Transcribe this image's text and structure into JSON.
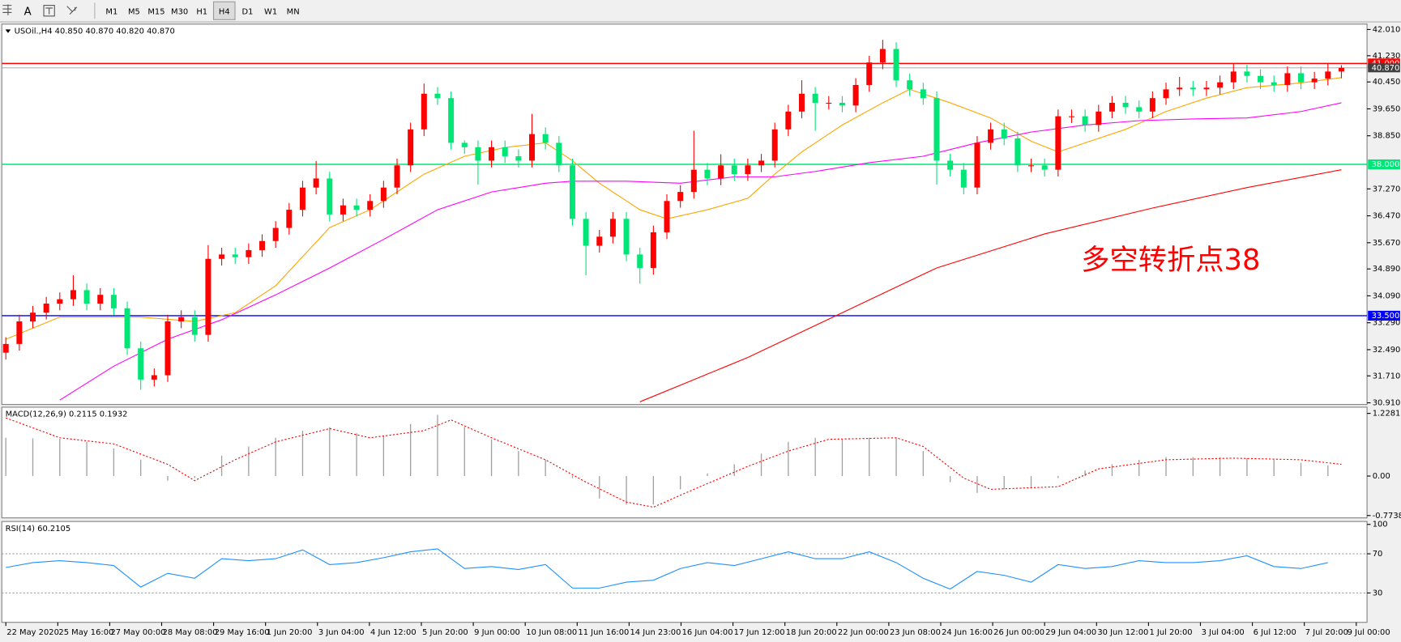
{
  "toolbar": {
    "tools": [
      "A"
    ],
    "timeframes": [
      "M1",
      "M5",
      "M15",
      "M30",
      "H1",
      "H4",
      "D1",
      "W1",
      "MN"
    ],
    "active_index": 5
  },
  "chart_data": [
    {
      "type": "candlestick",
      "title": "USOil.,H4  40.850 40.870 40.820 40.870",
      "annotation": "多空转折点38",
      "up_color": "#ff0000",
      "down_color": "#00e676",
      "open": [
        32.4,
        32.66,
        33.33,
        33.59,
        33.86,
        33.99,
        34.26,
        33.86,
        34.12,
        33.72,
        32.53,
        31.6,
        31.73,
        33.33,
        33.46,
        32.93,
        35.19,
        35.32,
        35.24,
        35.45,
        35.72,
        36.11,
        36.65,
        37.31,
        37.58,
        36.51,
        36.78,
        36.65,
        36.91,
        37.31,
        37.97,
        39.04,
        40.1,
        39.97,
        38.64,
        38.51,
        38.11,
        38.51,
        38.24,
        38.11,
        38.9,
        38.64,
        37.97,
        36.38,
        35.58,
        35.85,
        36.38,
        35.32,
        34.92,
        35.98,
        36.91,
        37.18,
        37.84,
        37.58,
        37.97,
        37.71,
        37.97,
        38.11,
        39.04,
        39.57,
        40.1,
        39.83,
        39.83,
        39.75,
        40.36,
        41.03,
        41.43,
        40.5,
        40.23,
        39.97,
        38.11,
        37.84,
        37.31,
        38.64,
        39.04,
        38.77,
        37.97,
        37.97,
        37.84,
        39.43,
        39.43,
        39.17,
        39.57,
        39.83,
        39.7,
        39.57,
        39.97,
        40.23,
        40.28,
        40.23,
        40.28,
        40.44,
        40.76,
        40.63,
        40.44,
        40.36,
        40.71,
        40.44,
        40.55,
        40.76
      ],
      "high": [
        32.86,
        33.53,
        33.79,
        34.06,
        34.19,
        34.7,
        34.46,
        34.32,
        34.32,
        33.92,
        32.73,
        31.93,
        33.53,
        33.66,
        33.66,
        35.6,
        35.52,
        35.52,
        35.65,
        35.92,
        36.31,
        36.85,
        37.51,
        38.1,
        37.78,
        36.98,
        36.98,
        37.11,
        37.51,
        38.17,
        39.24,
        40.4,
        40.3,
        40.17,
        38.71,
        38.71,
        38.71,
        38.71,
        38.44,
        39.5,
        39.1,
        38.84,
        38.17,
        36.58,
        36.05,
        36.58,
        36.58,
        35.52,
        36.18,
        37.11,
        37.38,
        39.0,
        38.04,
        38.3,
        38.17,
        38.17,
        38.31,
        39.24,
        39.77,
        40.5,
        40.3,
        40.03,
        40.03,
        40.56,
        41.23,
        41.7,
        41.63,
        40.7,
        40.43,
        40.17,
        38.31,
        38.04,
        38.84,
        39.24,
        39.24,
        38.97,
        38.17,
        38.17,
        39.63,
        39.63,
        39.63,
        39.77,
        40.03,
        40.03,
        39.9,
        40.17,
        40.43,
        40.6,
        40.48,
        40.48,
        40.64,
        41.0,
        40.96,
        40.83,
        40.64,
        40.91,
        40.91,
        40.75,
        41.0,
        40.95
      ],
      "low": [
        32.2,
        32.46,
        33.13,
        33.39,
        33.66,
        33.79,
        33.66,
        33.66,
        33.52,
        32.33,
        31.3,
        31.4,
        31.53,
        33.13,
        32.73,
        32.73,
        34.99,
        35.04,
        35.04,
        35.25,
        35.52,
        35.91,
        36.45,
        37.11,
        36.31,
        36.31,
        36.45,
        36.45,
        36.71,
        37.11,
        37.77,
        38.84,
        39.77,
        38.44,
        38.31,
        37.4,
        37.91,
        38.04,
        37.91,
        37.91,
        38.44,
        37.77,
        36.18,
        34.7,
        35.38,
        35.65,
        35.12,
        34.45,
        34.72,
        35.78,
        36.71,
        36.98,
        37.38,
        37.38,
        37.51,
        37.51,
        37.77,
        37.91,
        38.84,
        39.37,
        39.0,
        39.63,
        39.55,
        39.55,
        40.16,
        40.83,
        40.3,
        40.03,
        39.77,
        37.4,
        37.64,
        37.11,
        37.11,
        38.44,
        38.57,
        37.77,
        37.77,
        37.64,
        37.64,
        39.23,
        38.97,
        38.97,
        39.37,
        39.5,
        39.37,
        39.37,
        39.77,
        40.03,
        40.03,
        40.03,
        40.08,
        40.24,
        40.43,
        40.24,
        40.16,
        40.16,
        40.24,
        40.24,
        40.35,
        40.56
      ],
      "close": [
        32.66,
        33.33,
        33.59,
        33.86,
        33.99,
        34.26,
        33.86,
        34.12,
        33.72,
        32.53,
        31.6,
        31.73,
        33.33,
        33.46,
        32.93,
        35.19,
        35.32,
        35.24,
        35.45,
        35.72,
        36.11,
        36.65,
        37.31,
        37.58,
        36.51,
        36.78,
        36.65,
        36.91,
        37.31,
        37.97,
        39.04,
        40.1,
        39.97,
        38.64,
        38.51,
        38.11,
        38.51,
        38.24,
        38.11,
        38.9,
        38.64,
        37.97,
        36.38,
        35.58,
        35.85,
        36.38,
        35.32,
        34.92,
        35.98,
        36.91,
        37.18,
        37.84,
        37.58,
        37.97,
        37.71,
        37.97,
        38.11,
        39.04,
        39.57,
        40.1,
        39.83,
        39.83,
        39.75,
        40.36,
        41.03,
        41.43,
        40.5,
        40.23,
        39.97,
        38.11,
        37.84,
        37.31,
        38.64,
        39.04,
        38.77,
        37.97,
        37.97,
        37.84,
        39.43,
        39.43,
        39.17,
        39.57,
        39.83,
        39.7,
        39.57,
        39.97,
        40.23,
        40.28,
        40.23,
        40.28,
        40.44,
        40.76,
        40.63,
        40.44,
        40.36,
        40.71,
        40.44,
        40.55,
        40.76,
        40.87
      ],
      "lines": [
        {
          "color": "#ffa500",
          "x": [
            0,
            4,
            10,
            14,
            17,
            20,
            24,
            27,
            31,
            34,
            37,
            40,
            42,
            44,
            47,
            49,
            52,
            55,
            57,
            59,
            62,
            65,
            67,
            70,
            73,
            76,
            78,
            80,
            83,
            86,
            89,
            92,
            96,
            99
          ],
          "values": [
            32.8,
            33.46,
            33.46,
            33.33,
            33.59,
            34.39,
            36.12,
            36.65,
            37.71,
            38.24,
            38.5,
            38.64,
            38.11,
            37.44,
            36.65,
            36.38,
            36.65,
            36.99,
            37.71,
            38.37,
            39.17,
            39.83,
            40.23,
            39.83,
            39.38,
            38.69,
            38.37,
            38.64,
            39.04,
            39.57,
            39.97,
            40.28,
            40.42,
            40.58
          ]
        },
        {
          "color": "#ff00ff",
          "x": [
            4,
            8,
            12,
            16,
            20,
            24,
            28,
            32,
            36,
            40,
            42,
            46,
            50,
            54,
            57,
            60,
            64,
            68,
            72,
            76,
            80,
            84,
            88,
            92,
            96,
            99
          ],
          "values": [
            30.99,
            32.0,
            32.8,
            33.38,
            34.12,
            34.92,
            35.77,
            36.65,
            37.18,
            37.44,
            37.5,
            37.5,
            37.44,
            37.63,
            37.63,
            37.79,
            38.05,
            38.24,
            38.64,
            38.96,
            39.17,
            39.3,
            39.35,
            39.38,
            39.57,
            39.83
          ]
        },
        {
          "color": "#ff0000",
          "x": [
            47,
            55,
            62,
            69,
            77,
            85,
            92,
            99
          ],
          "values": [
            30.94,
            32.26,
            33.59,
            34.92,
            35.93,
            36.7,
            37.31,
            37.84
          ]
        }
      ],
      "levels": [
        {
          "value": 41.0,
          "label": "41.000",
          "color": "#ff0000"
        },
        {
          "value": 38.0,
          "label": "38.000",
          "color": "#00e676"
        },
        {
          "value": 33.5,
          "label": "33.500",
          "color": "#0000ff"
        }
      ],
      "last_price": {
        "value": 40.87,
        "label": "40.870"
      },
      "xlim": [
        -0.3,
        100.9
      ],
      "ylim": [
        30.86,
        42.17
      ],
      "yticks": [
        {
          "value": 42.01,
          "label": "42.010"
        },
        {
          "value": 41.23,
          "label": "41.230"
        },
        {
          "value": 40.45,
          "label": "40.450"
        },
        {
          "value": 39.65,
          "label": "39.650"
        },
        {
          "value": 38.85,
          "label": "38.850"
        },
        {
          "value": 37.27,
          "label": "37.270"
        },
        {
          "value": 36.47,
          "label": "36.470"
        },
        {
          "value": 35.67,
          "label": "35.670"
        },
        {
          "value": 34.89,
          "label": "34.890"
        },
        {
          "value": 34.09,
          "label": "34.090"
        },
        {
          "value": 33.29,
          "label": "33.290"
        },
        {
          "value": 32.49,
          "label": "32.490"
        },
        {
          "value": 31.71,
          "label": "31.710"
        },
        {
          "value": 30.91,
          "label": "30.910"
        }
      ]
    },
    {
      "type": "macd",
      "title": "MACD(12,26,9) 0.2115 0.1932",
      "histogram": {
        "color": "#a0a0a0",
        "x": [
          0,
          2,
          4,
          6,
          8,
          10,
          12,
          14,
          16,
          18,
          20,
          22,
          24,
          26,
          28,
          30,
          32,
          34,
          36,
          38,
          40,
          42,
          44,
          46,
          48,
          50,
          52,
          54,
          56,
          58,
          60,
          62,
          64,
          66,
          68,
          70,
          72,
          74,
          76,
          78,
          80,
          82,
          84,
          86,
          88,
          90,
          92,
          94,
          96,
          98
        ],
        "values": [
          0.75,
          0.74,
          0.73,
          0.67,
          0.54,
          0.32,
          -0.09,
          -0.04,
          0.4,
          0.58,
          0.75,
          0.89,
          0.96,
          0.84,
          0.79,
          1.02,
          1.2,
          0.96,
          0.72,
          0.49,
          0.32,
          -0.04,
          -0.44,
          -0.56,
          -0.56,
          -0.26,
          0.05,
          0.23,
          0.44,
          0.67,
          0.75,
          0.72,
          0.75,
          0.75,
          0.49,
          -0.12,
          -0.33,
          -0.26,
          -0.23,
          -0.04,
          0.11,
          0.23,
          0.32,
          0.37,
          0.37,
          0.37,
          0.35,
          0.32,
          0.26,
          0.21
        ]
      },
      "signal": {
        "color": "#ff0000",
        "x": [
          0,
          4,
          8,
          12,
          14,
          17,
          20,
          24,
          27,
          31,
          33,
          36,
          40,
          43,
          46,
          48,
          51,
          55,
          58,
          61,
          66,
          68,
          71,
          73,
          78,
          81,
          86,
          91,
          96,
          99
        ],
        "values": [
          1.14,
          0.75,
          0.63,
          0.23,
          -0.09,
          0.32,
          0.67,
          0.93,
          0.75,
          0.89,
          1.1,
          0.75,
          0.32,
          -0.12,
          -0.51,
          -0.61,
          -0.26,
          0.19,
          0.49,
          0.72,
          0.75,
          0.58,
          -0.04,
          -0.26,
          -0.21,
          0.14,
          0.32,
          0.35,
          0.32,
          0.23
        ]
      },
      "xlim": [
        -0.3,
        100.9
      ],
      "ylim": [
        -0.82,
        1.35
      ],
      "yticks": [
        1.2281,
        {
          "value": 0,
          "label": "0.00"
        },
        -0.7738
      ]
    },
    {
      "type": "line",
      "title": "RSI(14) 60.2105",
      "color": "#1e90ff",
      "x": [
        0,
        2,
        4,
        6,
        8,
        10,
        12,
        14,
        16,
        18,
        20,
        22,
        24,
        26,
        28,
        30,
        32,
        34,
        36,
        38,
        40,
        42,
        44,
        46,
        48,
        50,
        52,
        54,
        56,
        58,
        60,
        62,
        64,
        66,
        68,
        70,
        72,
        74,
        76,
        78,
        80,
        82,
        84,
        86,
        88,
        90,
        92,
        94,
        96,
        98
      ],
      "values": [
        56,
        61,
        63,
        61,
        58,
        36,
        50,
        45,
        65,
        63,
        65,
        74,
        59,
        61,
        66,
        72,
        75,
        55,
        57,
        54,
        59,
        35,
        35,
        41,
        43,
        55,
        61,
        58,
        65,
        72,
        65,
        65,
        72,
        61,
        45,
        34,
        52,
        48,
        41,
        59,
        55,
        57,
        63,
        61,
        61,
        63,
        68,
        57,
        55,
        61
      ],
      "levels": [
        30,
        70
      ],
      "xlim": [
        -0.3,
        100.9
      ],
      "ylim": [
        0,
        103
      ],
      "yticks": [
        30,
        70,
        100
      ],
      "xticks": [
        {
          "value": 0,
          "label": "22 May 2020"
        },
        {
          "value": 3.85,
          "label": "25 May 16:00"
        },
        {
          "value": 7.7,
          "label": "27 May 00:00"
        },
        {
          "value": 11.55,
          "label": "28 May 08:00"
        },
        {
          "value": 15.4,
          "label": "29 May 16:00"
        },
        {
          "value": 19.25,
          "label": "1 Jun 20:00"
        },
        {
          "value": 23.1,
          "label": "3 Jun 04:00"
        },
        {
          "value": 26.95,
          "label": "4 Jun 12:00"
        },
        {
          "value": 30.8,
          "label": "5 Jun 20:00"
        },
        {
          "value": 34.65,
          "label": "9 Jun 00:00"
        },
        {
          "value": 38.5,
          "label": "10 Jun 08:00"
        },
        {
          "value": 42.35,
          "label": "11 Jun 16:00"
        },
        {
          "value": 46.2,
          "label": "14 Jun 23:00"
        },
        {
          "value": 50.05,
          "label": "16 Jun 04:00"
        },
        {
          "value": 53.9,
          "label": "17 Jun 12:00"
        },
        {
          "value": 57.75,
          "label": "18 Jun 20:00"
        },
        {
          "value": 61.6,
          "label": "22 Jun 00:00"
        },
        {
          "value": 65.45,
          "label": "23 Jun 08:00"
        },
        {
          "value": 69.3,
          "label": "24 Jun 16:00"
        },
        {
          "value": 73.15,
          "label": "26 Jun 00:00"
        },
        {
          "value": 77.0,
          "label": "29 Jun 04:00"
        },
        {
          "value": 80.85,
          "label": "30 Jun 12:00"
        },
        {
          "value": 84.7,
          "label": "1 Jul 20:00"
        },
        {
          "value": 88.55,
          "label": "3 Jul 04:00"
        },
        {
          "value": 92.4,
          "label": "6 Jul 12:00"
        },
        {
          "value": 96.25,
          "label": "7 Jul 20:00"
        },
        {
          "value": 100.1,
          "label": "9 Jul 00:00"
        }
      ]
    }
  ]
}
